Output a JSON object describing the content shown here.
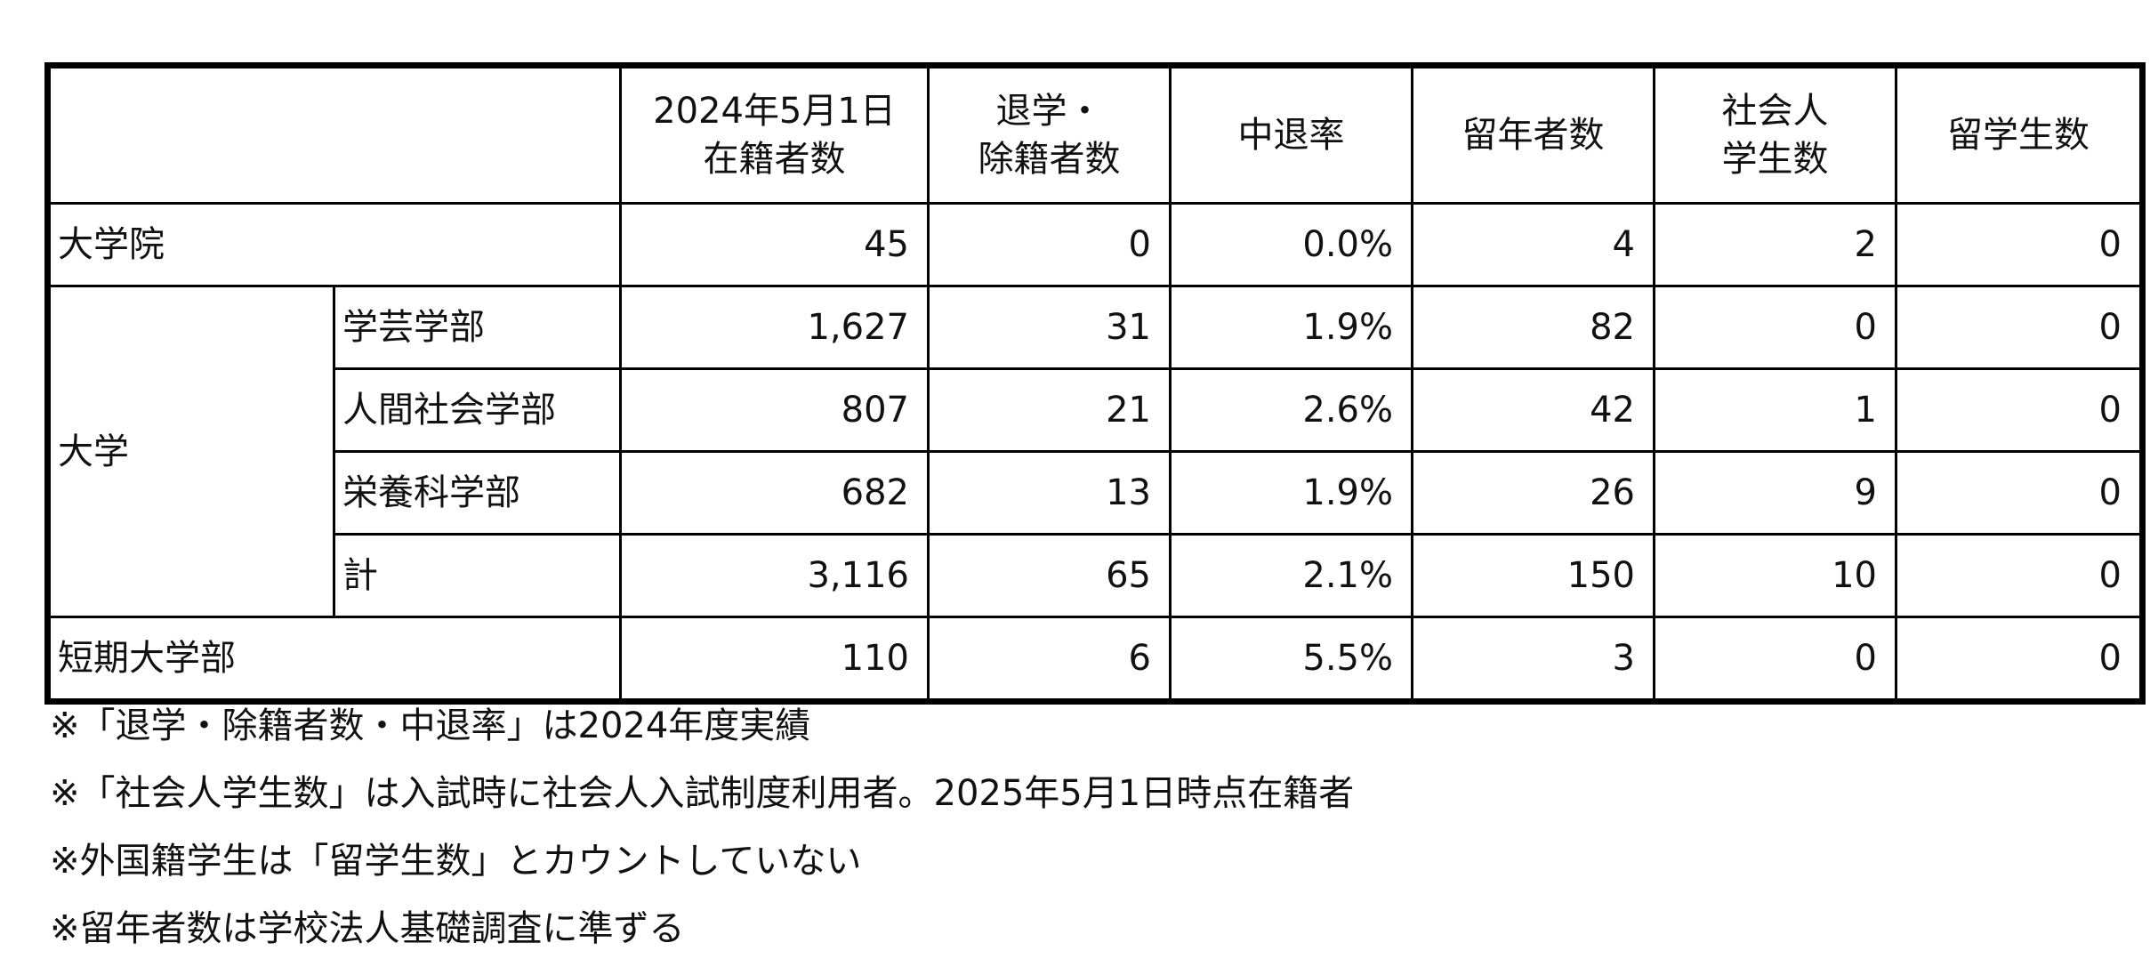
{
  "table": {
    "headers": [
      {
        "lines": [
          "",
          ""
        ]
      },
      {
        "lines": [
          "2024年5月1日",
          "在籍者数"
        ]
      },
      {
        "lines": [
          "退学・",
          "除籍者数"
        ]
      },
      {
        "lines": [
          "中退率"
        ]
      },
      {
        "lines": [
          "留年者数"
        ]
      },
      {
        "lines": [
          "社会人",
          "学生数"
        ]
      },
      {
        "lines": [
          "留学生数"
        ]
      }
    ],
    "group_univ_label": "大学",
    "rows": [
      {
        "label": "大学院",
        "values": [
          "45",
          "0",
          "0.0%",
          "4",
          "2",
          "0"
        ]
      },
      {
        "label": "学芸学部",
        "values": [
          "1,627",
          "31",
          "1.9%",
          "82",
          "0",
          "0"
        ]
      },
      {
        "label": "人間社会学部",
        "values": [
          "807",
          "21",
          "2.6%",
          "42",
          "1",
          "0"
        ]
      },
      {
        "label": "栄養科学部",
        "values": [
          "682",
          "13",
          "1.9%",
          "26",
          "9",
          "0"
        ]
      },
      {
        "label": "計",
        "values": [
          "3,116",
          "65",
          "2.1%",
          "150",
          "10",
          "0"
        ]
      },
      {
        "label": "短期大学部",
        "values": [
          "110",
          "6",
          "5.5%",
          "3",
          "0",
          "0"
        ]
      }
    ]
  },
  "notes": [
    "※「退学・除籍者数・中退率」は2024年度実績",
    "※「社会人学生数」は入試時に社会人入試制度利用者。2025年5月1日時点在籍者",
    "※外国籍学生は「留学生数」とカウントしていない",
    "※留年者数は学校法人基礎調査に準ずる"
  ]
}
